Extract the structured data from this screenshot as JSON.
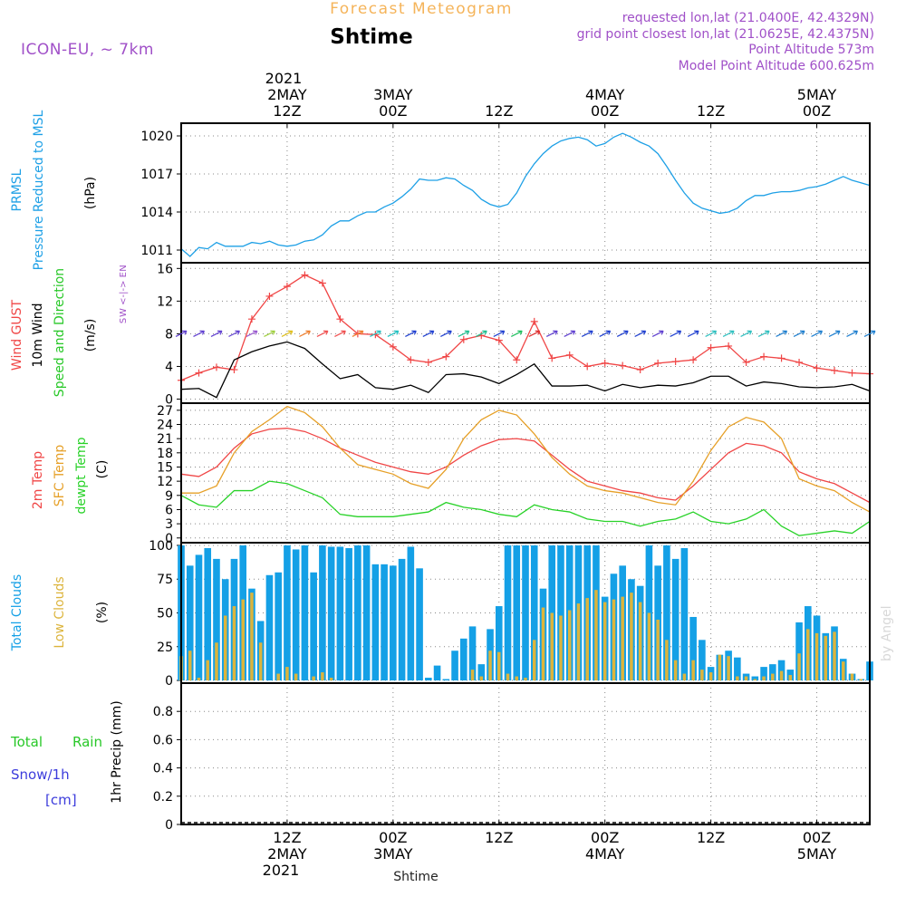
{
  "header": {
    "product": "Forecast Meteogram",
    "location": "Shtime",
    "model": "ICON-EU, ~ 7km",
    "requested": "requested lon,lat (21.0400E, 42.4329N)",
    "gridpoint": "grid point closest lon,lat (21.0625E, 42.4375N)",
    "altitude": "Point Altitude 573m",
    "model_altitude": "Model Point Altitude 600.625m",
    "footer": "Shtime",
    "watermark": "by Angel"
  },
  "time_axis": {
    "start_hour": 0,
    "end_hour": 78,
    "year": "2021",
    "ticks": [
      {
        "hour": 12,
        "line1": "12Z",
        "line2": "2MAY"
      },
      {
        "hour": 24,
        "line1": "00Z",
        "line2": "3MAY"
      },
      {
        "hour": 36,
        "line1": "12Z",
        "line2": ""
      },
      {
        "hour": 48,
        "line1": "00Z",
        "line2": "4MAY"
      },
      {
        "hour": 60,
        "line1": "12Z",
        "line2": ""
      },
      {
        "hour": 72,
        "line1": "00Z",
        "line2": "5MAY"
      }
    ]
  },
  "panels": {
    "pressure": {
      "labels": [
        "PRMSL",
        "Pressure Reduced to MSL",
        "(hPa)"
      ]
    },
    "wind": {
      "labels": [
        "Wind GUST",
        "10m Wind",
        "Speed and Direction",
        "(m/s)"
      ],
      "compass": [
        "N",
        "W <-|-> E",
        "S"
      ]
    },
    "temp": {
      "labels": [
        "2m Temp",
        "SFC Temp",
        "dewpt Temp",
        "(C)"
      ]
    },
    "clouds": {
      "labels": [
        "Total Clouds",
        "Low Clouds",
        "(%)"
      ]
    },
    "precip": {
      "labels": [
        "Total",
        "Rain",
        "Snow/1h",
        "[cm]",
        "1hr Precip (mm)"
      ]
    }
  },
  "colors": {
    "pressure": "#1ea0e6",
    "gust": "#f04646",
    "wind": "#000000",
    "t2m": "#f04646",
    "tsfc": "#e6a028",
    "dewpt": "#28d228",
    "total_clouds": "#14a0e6",
    "low_clouds": "#dcb43c",
    "title_orange": "#f5b45a",
    "info_purple": "#a050c8",
    "rain_green": "#28c828",
    "snow_blue": "#3c3cdc"
  },
  "chart_data": [
    {
      "type": "line",
      "panel": "pressure",
      "ylim": [
        1010,
        1021
      ],
      "yticks": [
        1011,
        1014,
        1017,
        1020
      ],
      "x": [
        0,
        1,
        2,
        3,
        4,
        5,
        6,
        7,
        8,
        9,
        10,
        11,
        12,
        13,
        14,
        15,
        16,
        17,
        18,
        19,
        20,
        21,
        22,
        23,
        24,
        25,
        26,
        27,
        28,
        29,
        30,
        31,
        32,
        33,
        34,
        35,
        36,
        37,
        38,
        39,
        40,
        41,
        42,
        43,
        44,
        45,
        46,
        47,
        48,
        49,
        50,
        51,
        52,
        53,
        54,
        55,
        56,
        57,
        58,
        59,
        60,
        61,
        62,
        63,
        64,
        65,
        66,
        67,
        68,
        69,
        70,
        71,
        72,
        73,
        74,
        75,
        76,
        77,
        78
      ],
      "series": [
        {
          "key": "pressure",
          "values": [
            1011.1,
            1010.5,
            1011.2,
            1011.1,
            1011.6,
            1011.3,
            1011.3,
            1011.3,
            1011.6,
            1011.5,
            1011.7,
            1011.4,
            1011.3,
            1011.4,
            1011.7,
            1011.8,
            1012.2,
            1012.9,
            1013.3,
            1013.3,
            1013.7,
            1014.0,
            1014.0,
            1014.4,
            1014.7,
            1015.2,
            1015.8,
            1016.6,
            1016.5,
            1016.5,
            1016.7,
            1016.6,
            1016.1,
            1015.7,
            1015.0,
            1014.6,
            1014.4,
            1014.6,
            1015.5,
            1016.8,
            1017.8,
            1018.6,
            1019.2,
            1019.6,
            1019.8,
            1019.9,
            1019.7,
            1019.2,
            1019.4,
            1019.9,
            1020.2,
            1019.9,
            1019.5,
            1019.2,
            1018.6,
            1017.6,
            1016.5,
            1015.5,
            1014.7,
            1014.3,
            1014.1,
            1013.9,
            1014.0,
            1014.3,
            1014.9,
            1015.3,
            1015.3,
            1015.5,
            1015.6,
            1015.6,
            1015.7,
            1015.9,
            1016.0,
            1016.2,
            1016.5,
            1016.8,
            1016.5,
            1016.3,
            1016.1
          ]
        }
      ]
    },
    {
      "type": "line",
      "panel": "wind",
      "ylim": [
        -0.5,
        16.7
      ],
      "yticks": [
        0,
        4,
        8,
        12,
        16
      ],
      "x": [
        0,
        2,
        4,
        6,
        8,
        10,
        12,
        14,
        16,
        18,
        20,
        22,
        24,
        26,
        28,
        30,
        32,
        34,
        36,
        38,
        40,
        42,
        44,
        46,
        48,
        50,
        52,
        54,
        56,
        58,
        60,
        62,
        64,
        66,
        68,
        70,
        72,
        74,
        76,
        78
      ],
      "series": [
        {
          "key": "gust",
          "name": "Wind GUST",
          "values": [
            2.3,
            3.2,
            3.9,
            3.6,
            9.8,
            12.6,
            13.8,
            15.2,
            14.2,
            9.8,
            8.0,
            7.9,
            6.4,
            4.8,
            4.5,
            5.2,
            7.3,
            7.8,
            7.2,
            4.8,
            9.5,
            5.0,
            5.4,
            4.0,
            4.4,
            4.1,
            3.6,
            4.4,
            4.6,
            4.8,
            6.3,
            6.5,
            4.5,
            5.2,
            5.0,
            4.5,
            3.8,
            3.5,
            3.2,
            3.1
          ]
        },
        {
          "key": "wind",
          "name": "10m Wind",
          "values": [
            1.2,
            1.3,
            0.2,
            4.8,
            5.8,
            6.5,
            7.0,
            6.2,
            4.3,
            2.5,
            3.0,
            1.4,
            1.2,
            1.7,
            0.8,
            3.0,
            3.1,
            2.7,
            1.9,
            3.0,
            4.3,
            1.6,
            1.6,
            1.7,
            1.0,
            1.8,
            1.4,
            1.7,
            1.6,
            2.0,
            2.8,
            2.8,
            1.6,
            2.1,
            1.9,
            1.5,
            1.4,
            1.5,
            1.8,
            1.0
          ]
        }
      ]
    },
    {
      "type": "line",
      "panel": "temp",
      "ylim": [
        -1,
        28.5
      ],
      "yticks": [
        0,
        3,
        6,
        9,
        12,
        15,
        18,
        21,
        24,
        27
      ],
      "x": [
        0,
        2,
        4,
        6,
        8,
        10,
        12,
        14,
        16,
        18,
        20,
        22,
        24,
        26,
        28,
        30,
        32,
        34,
        36,
        38,
        40,
        42,
        44,
        46,
        48,
        50,
        52,
        54,
        56,
        58,
        60,
        62,
        64,
        66,
        68,
        70,
        72,
        74,
        76,
        78
      ],
      "series": [
        {
          "key": "t2m",
          "name": "2m Temp",
          "values": [
            13.5,
            13.0,
            15.0,
            19.0,
            22.0,
            23.0,
            23.2,
            22.5,
            21.0,
            19.0,
            17.5,
            16.0,
            15.0,
            14.0,
            13.5,
            15.0,
            17.5,
            19.5,
            20.8,
            21.0,
            20.5,
            17.5,
            14.5,
            12.0,
            11.0,
            10.0,
            9.5,
            8.5,
            8.0,
            11.0,
            14.5,
            18.0,
            20.0,
            19.5,
            18.0,
            14.0,
            12.5,
            11.5,
            9.5,
            7.5
          ]
        },
        {
          "key": "tsfc",
          "name": "SFC Temp",
          "values": [
            9.5,
            9.5,
            11.0,
            18.0,
            22.5,
            25.0,
            27.8,
            26.5,
            23.5,
            19.0,
            15.5,
            14.5,
            13.5,
            11.5,
            10.5,
            14.5,
            21.0,
            25.0,
            27.0,
            26.0,
            22.0,
            17.0,
            13.5,
            11.0,
            10.0,
            9.5,
            8.5,
            7.5,
            7.0,
            12.0,
            18.5,
            23.5,
            25.5,
            24.5,
            21.0,
            12.5,
            11.0,
            10.0,
            7.5,
            5.5
          ]
        },
        {
          "key": "dewpt",
          "name": "dewpt Temp",
          "values": [
            9.0,
            7.0,
            6.5,
            10.0,
            10.0,
            12.0,
            11.5,
            10.0,
            8.5,
            5.0,
            4.5,
            4.5,
            4.5,
            5.0,
            5.5,
            7.5,
            6.5,
            6.0,
            5.0,
            4.5,
            7.0,
            6.0,
            5.5,
            4.0,
            3.5,
            3.5,
            2.5,
            3.5,
            4.0,
            5.5,
            3.5,
            3.0,
            4.0,
            6.0,
            2.5,
            0.5,
            1.0,
            1.5,
            1.0,
            3.5
          ]
        }
      ]
    },
    {
      "type": "bar",
      "panel": "clouds",
      "ylim": [
        -2,
        102
      ],
      "yticks": [
        0,
        25,
        50,
        75,
        100
      ],
      "x": [
        0,
        1,
        2,
        3,
        4,
        5,
        6,
        7,
        8,
        9,
        10,
        11,
        12,
        13,
        14,
        15,
        16,
        17,
        18,
        19,
        20,
        21,
        22,
        23,
        24,
        25,
        26,
        27,
        28,
        29,
        30,
        31,
        32,
        33,
        34,
        35,
        36,
        37,
        38,
        39,
        40,
        41,
        42,
        43,
        44,
        45,
        46,
        47,
        48,
        49,
        50,
        51,
        52,
        53,
        54,
        55,
        56,
        57,
        58,
        59,
        60,
        61,
        62,
        63,
        64,
        65,
        66,
        67,
        68,
        69,
        70,
        71,
        72,
        73,
        74,
        75,
        76,
        77,
        78
      ],
      "series": [
        {
          "key": "total_clouds",
          "name": "Total Clouds",
          "values": [
            100,
            85,
            93,
            98,
            90,
            75,
            90,
            100,
            68,
            44,
            78,
            80,
            100,
            97,
            100,
            80,
            100,
            99,
            99,
            98,
            100,
            100,
            86,
            86,
            85,
            90,
            99,
            83,
            2,
            11,
            1,
            22,
            31,
            40,
            12,
            38,
            55,
            100,
            100,
            100,
            100,
            68,
            100,
            100,
            100,
            100,
            100,
            100,
            62,
            79,
            85,
            75,
            70,
            100,
            85,
            100,
            90,
            98,
            47,
            30,
            10,
            19,
            22,
            17,
            5,
            3,
            10,
            12,
            15,
            8,
            43,
            55,
            48,
            35,
            40,
            16,
            5,
            1,
            14
          ]
        },
        {
          "key": "low_clouds",
          "name": "Low Clouds",
          "values": [
            18,
            22,
            2,
            15,
            28,
            48,
            55,
            60,
            65,
            28,
            0,
            5,
            10,
            5,
            0,
            3,
            6,
            2,
            0,
            0,
            0,
            0,
            0,
            0,
            0,
            0,
            0,
            0,
            0,
            0,
            0,
            0,
            0,
            8,
            3,
            22,
            21,
            5,
            3,
            2,
            30,
            54,
            50,
            48,
            52,
            57,
            61,
            67,
            58,
            60,
            62,
            65,
            58,
            50,
            45,
            30,
            15,
            5,
            15,
            8,
            6,
            19,
            18,
            3,
            3,
            1,
            3,
            5,
            7,
            4,
            20,
            38,
            35,
            33,
            36,
            14,
            5,
            1,
            0
          ]
        }
      ]
    },
    {
      "type": "bar",
      "panel": "precip",
      "ylim": [
        0,
        1.0
      ],
      "yticks": [
        0,
        0.2,
        0.4,
        0.6,
        0.8
      ],
      "x": [],
      "series": [
        {
          "key": "rain",
          "name": "Total Rain",
          "values": []
        },
        {
          "key": "snow",
          "name": "Snow/1h",
          "values": []
        }
      ]
    }
  ]
}
